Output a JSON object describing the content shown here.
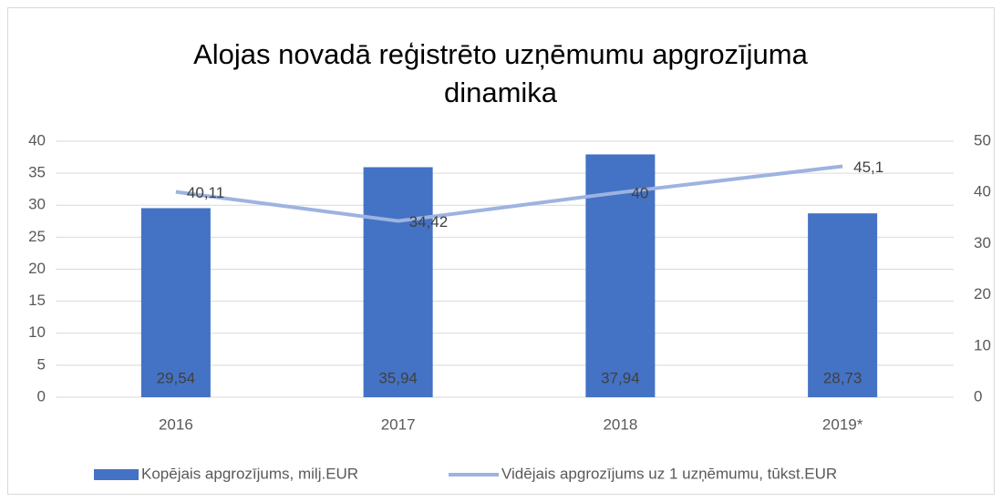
{
  "chart_data": {
    "type": "bar",
    "title": [
      "Alojas novadā reģistrēto uzņēmumu apgrozījuma",
      "dinamika"
    ],
    "categories": [
      "2016",
      "2017",
      "2018",
      "2019*"
    ],
    "series": [
      {
        "name": "Kopējais apgrozījums, milj.EUR",
        "type": "bar",
        "color": "#4472c4",
        "values": [
          29.54,
          35.94,
          37.94,
          28.73
        ],
        "value_labels": [
          "29,54",
          "35,94",
          "37,94",
          "28,73"
        ]
      },
      {
        "name": "Vidējais apgrozījums uz 1 uzņēmumu, tūkst.EUR",
        "type": "line",
        "axis": "y2",
        "color": "#9db3e0",
        "values": [
          40.11,
          34.42,
          40,
          45.1
        ],
        "value_labels": [
          "40,11",
          "34,42",
          "40",
          "45,1"
        ]
      }
    ],
    "ylim": [
      0,
      40
    ],
    "yticks": [
      0,
      5,
      10,
      15,
      20,
      25,
      30,
      35,
      40
    ],
    "y2lim": [
      0,
      50
    ],
    "y2ticks": [
      0,
      10,
      20,
      30,
      40,
      50
    ],
    "grid": true,
    "legend": "bottom"
  }
}
